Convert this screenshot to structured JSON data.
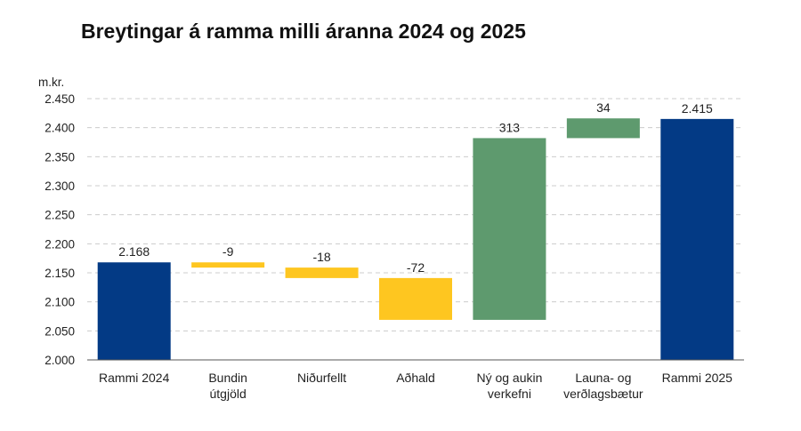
{
  "chart_data": {
    "type": "bar",
    "title": "Breytingar á ramma milli áranna 2024 og 2025",
    "ylabel": "m.kr.",
    "ylim": [
      2000,
      2450
    ],
    "ytick_step": 50,
    "yticks": [
      "2.000",
      "2.050",
      "2.100",
      "2.150",
      "2.200",
      "2.250",
      "2.300",
      "2.350",
      "2.400",
      "2.450"
    ],
    "grid": true,
    "categories": [
      [
        "Rammi 2024"
      ],
      [
        "Bundin",
        "útgjöld"
      ],
      [
        "Niðurfellt"
      ],
      [
        "Aðhald"
      ],
      [
        "Ný og aukin",
        "verkefni"
      ],
      [
        "Launa- og",
        "verðlagsbætur"
      ],
      [
        "Rammi 2025"
      ]
    ],
    "values": [
      2168,
      -9,
      -18,
      -72,
      313,
      34,
      2415
    ],
    "value_labels": [
      "2.168",
      "-9",
      "-18",
      "-72",
      "313",
      "34",
      "2.415"
    ],
    "kinds": [
      "total",
      "change",
      "change",
      "change",
      "change",
      "change",
      "total"
    ],
    "colors": {
      "total": "#033a85",
      "decrease": "#fec620",
      "increase": "#5e9a6e",
      "grid": "#cccccc",
      "axis": "#555555"
    }
  }
}
